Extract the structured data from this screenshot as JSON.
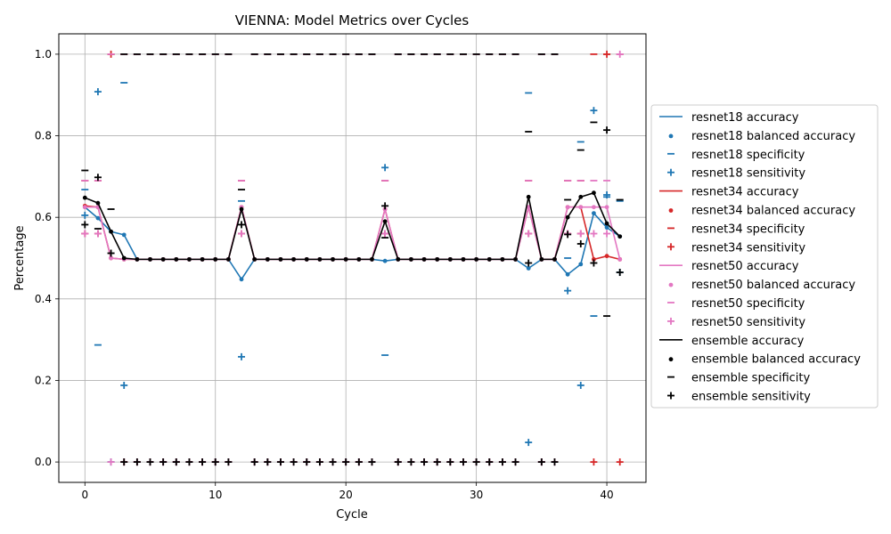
{
  "chart_data": {
    "type": "line",
    "title": "VIENNA: Model Metrics over Cycles",
    "xlabel": "Cycle",
    "ylabel": "Percentage",
    "xlim": [
      -2,
      43
    ],
    "ylim": [
      -0.05,
      1.05
    ],
    "xticks": [
      0,
      10,
      20,
      30,
      40
    ],
    "yticks": [
      0.0,
      0.2,
      0.4,
      0.6,
      0.8,
      1.0
    ],
    "grid": true,
    "legend_position": "right",
    "x": [
      0,
      1,
      2,
      3,
      4,
      5,
      6,
      7,
      8,
      9,
      10,
      11,
      12,
      13,
      14,
      15,
      16,
      17,
      18,
      19,
      20,
      21,
      22,
      23,
      24,
      25,
      26,
      27,
      28,
      29,
      30,
      31,
      32,
      33,
      34,
      35,
      36,
      37,
      38,
      39,
      40,
      41
    ],
    "models": [
      {
        "name": "resnet18",
        "color": "#1f77b4",
        "accuracy": [
          0.625,
          0.598,
          0.565,
          0.557,
          0.497,
          0.497,
          0.497,
          0.497,
          0.497,
          0.497,
          0.497,
          0.497,
          0.448,
          0.497,
          0.497,
          0.497,
          0.497,
          0.497,
          0.497,
          0.497,
          0.497,
          0.497,
          0.497,
          0.493,
          0.497,
          0.497,
          0.497,
          0.497,
          0.497,
          0.497,
          0.497,
          0.497,
          0.497,
          0.497,
          0.475,
          0.497,
          0.497,
          0.46,
          0.485,
          0.61,
          0.575,
          0.553
        ],
        "balanced_accuracy": [
          0.625,
          0.598,
          0.565,
          0.557,
          0.497,
          0.497,
          0.497,
          0.497,
          0.497,
          0.497,
          0.497,
          0.497,
          0.448,
          0.497,
          0.497,
          0.497,
          0.497,
          0.497,
          0.497,
          0.497,
          0.497,
          0.497,
          0.497,
          0.493,
          0.497,
          0.497,
          0.497,
          0.497,
          0.497,
          0.497,
          0.497,
          0.497,
          0.497,
          0.497,
          0.475,
          0.497,
          0.497,
          0.46,
          0.485,
          0.61,
          0.575,
          0.553
        ],
        "specificity": [
          0.668,
          0.287,
          1.0,
          0.93,
          1.0,
          1.0,
          1.0,
          1.0,
          1.0,
          1.0,
          1.0,
          1.0,
          0.64,
          1.0,
          1.0,
          1.0,
          1.0,
          1.0,
          1.0,
          1.0,
          1.0,
          1.0,
          1.0,
          0.262,
          1.0,
          1.0,
          1.0,
          1.0,
          1.0,
          1.0,
          1.0,
          1.0,
          1.0,
          1.0,
          0.905,
          1.0,
          1.0,
          0.5,
          0.785,
          0.358,
          0.65,
          0.64
        ],
        "sensitivity": [
          0.605,
          0.908,
          0.0,
          0.188,
          0.0,
          0.0,
          0.0,
          0.0,
          0.0,
          0.0,
          0.0,
          0.0,
          0.258,
          0.0,
          0.0,
          0.0,
          0.0,
          0.0,
          0.0,
          0.0,
          0.0,
          0.0,
          0.0,
          0.722,
          0.0,
          0.0,
          0.0,
          0.0,
          0.0,
          0.0,
          0.0,
          0.0,
          0.0,
          0.0,
          0.048,
          0.0,
          0.0,
          0.42,
          0.188,
          0.862,
          0.655,
          0.465
        ]
      },
      {
        "name": "resnet34",
        "color": "#d62728",
        "accuracy": [
          0.628,
          0.625,
          0.5,
          0.497,
          0.497,
          0.497,
          0.497,
          0.497,
          0.497,
          0.497,
          0.497,
          0.497,
          0.625,
          0.497,
          0.497,
          0.497,
          0.497,
          0.497,
          0.497,
          0.497,
          0.497,
          0.497,
          0.497,
          0.62,
          0.497,
          0.497,
          0.497,
          0.497,
          0.497,
          0.497,
          0.497,
          0.497,
          0.497,
          0.497,
          0.625,
          0.497,
          0.497,
          0.625,
          0.625,
          0.497,
          0.505,
          0.497
        ],
        "balanced_accuracy": [
          0.628,
          0.625,
          0.5,
          0.497,
          0.497,
          0.497,
          0.497,
          0.497,
          0.497,
          0.497,
          0.497,
          0.497,
          0.625,
          0.497,
          0.497,
          0.497,
          0.497,
          0.497,
          0.497,
          0.497,
          0.497,
          0.497,
          0.497,
          0.62,
          0.497,
          0.497,
          0.497,
          0.497,
          0.497,
          0.497,
          0.497,
          0.497,
          0.497,
          0.497,
          0.625,
          0.497,
          0.497,
          0.625,
          0.625,
          0.497,
          0.505,
          0.497
        ],
        "specificity": [
          0.69,
          0.69,
          1.0,
          1.0,
          1.0,
          1.0,
          1.0,
          1.0,
          1.0,
          1.0,
          1.0,
          1.0,
          0.69,
          1.0,
          1.0,
          1.0,
          1.0,
          1.0,
          1.0,
          1.0,
          1.0,
          1.0,
          1.0,
          0.69,
          1.0,
          1.0,
          1.0,
          1.0,
          1.0,
          1.0,
          1.0,
          1.0,
          1.0,
          1.0,
          0.69,
          1.0,
          1.0,
          0.69,
          0.69,
          1.0,
          1.0,
          1.0
        ],
        "sensitivity": [
          0.56,
          0.56,
          1.0,
          0.0,
          0.0,
          0.0,
          0.0,
          0.0,
          0.0,
          0.0,
          0.0,
          0.0,
          0.56,
          0.0,
          0.0,
          0.0,
          0.0,
          0.0,
          0.0,
          0.0,
          0.0,
          0.0,
          0.0,
          0.56,
          0.0,
          0.0,
          0.0,
          0.0,
          0.0,
          0.0,
          0.0,
          0.0,
          0.0,
          0.0,
          0.56,
          0.0,
          0.0,
          0.56,
          0.56,
          0.0,
          1.0,
          0.0
        ]
      },
      {
        "name": "resnet50",
        "color": "#e377c2",
        "accuracy": [
          0.625,
          0.625,
          0.5,
          0.497,
          0.497,
          0.497,
          0.497,
          0.497,
          0.497,
          0.497,
          0.497,
          0.497,
          0.625,
          0.497,
          0.497,
          0.497,
          0.497,
          0.497,
          0.497,
          0.497,
          0.497,
          0.497,
          0.497,
          0.62,
          0.497,
          0.497,
          0.497,
          0.497,
          0.497,
          0.497,
          0.497,
          0.497,
          0.497,
          0.497,
          0.625,
          0.497,
          0.497,
          0.625,
          0.625,
          0.625,
          0.625,
          0.497
        ],
        "balanced_accuracy": [
          0.625,
          0.625,
          0.5,
          0.497,
          0.497,
          0.497,
          0.497,
          0.497,
          0.497,
          0.497,
          0.497,
          0.497,
          0.625,
          0.497,
          0.497,
          0.497,
          0.497,
          0.497,
          0.497,
          0.497,
          0.497,
          0.497,
          0.497,
          0.62,
          0.497,
          0.497,
          0.497,
          0.497,
          0.497,
          0.497,
          0.497,
          0.497,
          0.497,
          0.497,
          0.625,
          0.497,
          0.497,
          0.625,
          0.625,
          0.625,
          0.625,
          0.497
        ],
        "specificity": [
          0.69,
          0.69,
          1.0,
          1.0,
          1.0,
          1.0,
          1.0,
          1.0,
          1.0,
          1.0,
          1.0,
          1.0,
          0.69,
          1.0,
          1.0,
          1.0,
          1.0,
          1.0,
          1.0,
          1.0,
          1.0,
          1.0,
          1.0,
          0.69,
          1.0,
          1.0,
          1.0,
          1.0,
          1.0,
          1.0,
          1.0,
          1.0,
          1.0,
          1.0,
          0.69,
          1.0,
          1.0,
          0.69,
          0.69,
          0.69,
          0.69,
          1.0
        ],
        "sensitivity": [
          0.56,
          0.56,
          0.0,
          0.0,
          0.0,
          0.0,
          0.0,
          0.0,
          0.0,
          0.0,
          0.0,
          0.0,
          0.56,
          0.0,
          0.0,
          0.0,
          0.0,
          0.0,
          0.0,
          0.0,
          0.0,
          0.0,
          0.0,
          0.56,
          0.0,
          0.0,
          0.0,
          0.0,
          0.0,
          0.0,
          0.0,
          0.0,
          0.0,
          0.0,
          0.56,
          0.0,
          0.0,
          0.56,
          0.56,
          0.56,
          0.56,
          1.0
        ]
      },
      {
        "name": "ensemble",
        "color": "#000000",
        "accuracy": [
          0.648,
          0.635,
          0.565,
          0.5,
          0.497,
          0.497,
          0.497,
          0.497,
          0.497,
          0.497,
          0.497,
          0.497,
          0.62,
          0.497,
          0.497,
          0.497,
          0.497,
          0.497,
          0.497,
          0.497,
          0.497,
          0.497,
          0.497,
          0.59,
          0.497,
          0.497,
          0.497,
          0.497,
          0.497,
          0.497,
          0.497,
          0.497,
          0.497,
          0.497,
          0.65,
          0.497,
          0.497,
          0.6,
          0.65,
          0.66,
          0.585,
          0.553
        ],
        "balanced_accuracy": [
          0.648,
          0.635,
          0.565,
          0.5,
          0.497,
          0.497,
          0.497,
          0.497,
          0.497,
          0.497,
          0.497,
          0.497,
          0.62,
          0.497,
          0.497,
          0.497,
          0.497,
          0.497,
          0.497,
          0.497,
          0.497,
          0.497,
          0.497,
          0.59,
          0.497,
          0.497,
          0.497,
          0.497,
          0.497,
          0.497,
          0.497,
          0.497,
          0.497,
          0.497,
          0.65,
          0.497,
          0.497,
          0.6,
          0.65,
          0.66,
          0.585,
          0.553
        ],
        "specificity": [
          0.715,
          0.572,
          0.62,
          1.0,
          1.0,
          1.0,
          1.0,
          1.0,
          1.0,
          1.0,
          1.0,
          1.0,
          0.668,
          1.0,
          1.0,
          1.0,
          1.0,
          1.0,
          1.0,
          1.0,
          1.0,
          1.0,
          1.0,
          0.55,
          1.0,
          1.0,
          1.0,
          1.0,
          1.0,
          1.0,
          1.0,
          1.0,
          1.0,
          1.0,
          0.81,
          1.0,
          1.0,
          0.643,
          0.765,
          0.833,
          0.358,
          0.643
        ],
        "sensitivity": [
          0.582,
          0.698,
          0.512,
          0.0,
          0.0,
          0.0,
          0.0,
          0.0,
          0.0,
          0.0,
          0.0,
          0.0,
          0.582,
          0.0,
          0.0,
          0.0,
          0.0,
          0.0,
          0.0,
          0.0,
          0.0,
          0.0,
          0.0,
          0.628,
          0.0,
          0.0,
          0.0,
          0.0,
          0.0,
          0.0,
          0.0,
          0.0,
          0.0,
          0.0,
          0.488,
          0.0,
          0.0,
          0.558,
          0.535,
          0.488,
          0.814,
          0.465
        ]
      }
    ],
    "legend": [
      "resnet18 accuracy",
      "resnet18 balanced accuracy",
      "resnet18 specificity",
      "resnet18 sensitivity",
      "resnet34 accuracy",
      "resnet34 balanced accuracy",
      "resnet34 specificity",
      "resnet34 sensitivity",
      "resnet50 accuracy",
      "resnet50 balanced accuracy",
      "resnet50 specificity",
      "resnet50 sensitivity",
      "ensemble accuracy",
      "ensemble balanced accuracy",
      "ensemble specificity",
      "ensemble sensitivity"
    ]
  }
}
